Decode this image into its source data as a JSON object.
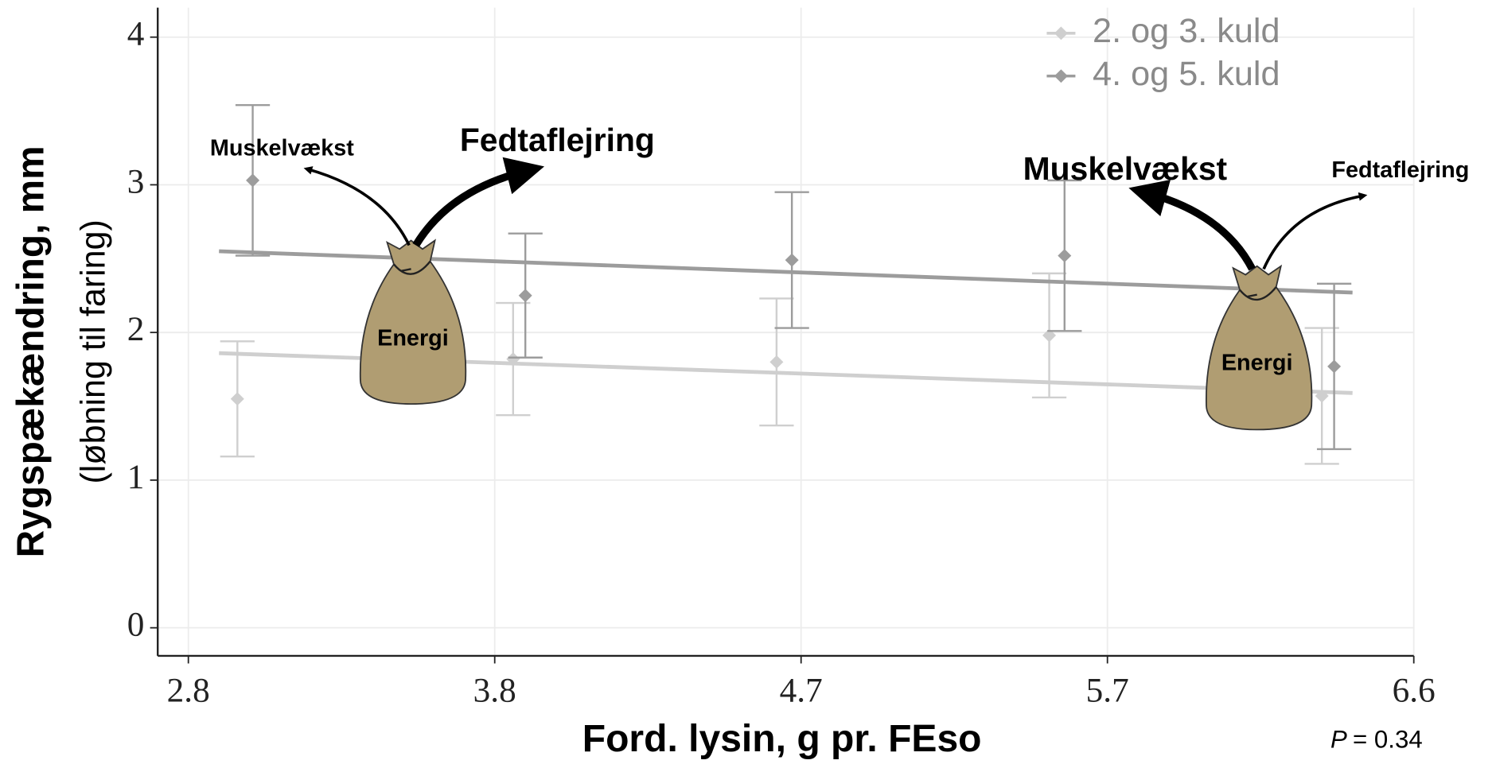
{
  "chart_data": {
    "type": "errorbar",
    "x_label": "Ford. lysin, g pr. FEso",
    "y_label": [
      "Rygspækændring, mm",
      "(løbning til faring)"
    ],
    "xlim": [
      -0.1,
      4
    ],
    "xticks": [
      {
        "value": 0,
        "label": "2.8"
      },
      {
        "value": 1,
        "label": "3.8"
      },
      {
        "value": 2,
        "label": "4.7"
      },
      {
        "value": 3,
        "label": "5.7"
      },
      {
        "value": 4,
        "label": "6.6"
      }
    ],
    "ylim": [
      -0.19,
      4.2
    ],
    "yticks": [
      0,
      1,
      2,
      3,
      4
    ],
    "grid": true,
    "legend_position": "top-right",
    "series": [
      {
        "name": "2. og 3. kuld",
        "color": "#cfcfcf",
        "x": [
          0.16,
          1.06,
          1.92,
          2.81,
          3.7
        ],
        "values": [
          1.55,
          1.82,
          1.8,
          1.98,
          1.57
        ],
        "errors": [
          0.39,
          0.38,
          0.43,
          0.42,
          0.46
        ],
        "trend": {
          "x": [
            0.1,
            3.8
          ],
          "y": [
            1.86,
            1.59
          ]
        }
      },
      {
        "name": "4. og 5. kuld",
        "color": "#9c9c9c",
        "x": [
          0.21,
          1.1,
          1.97,
          2.86,
          3.74
        ],
        "values": [
          3.03,
          2.25,
          2.49,
          2.52,
          1.77
        ],
        "errors": [
          0.51,
          0.42,
          0.46,
          0.51,
          0.56
        ],
        "trend": {
          "x": [
            0.1,
            3.8
          ],
          "y": [
            2.55,
            2.27
          ]
        }
      }
    ],
    "annotations": [
      "Muskelvækst",
      "Fedtaflejring",
      "Energi",
      "Muskelvækst",
      "Fedtaflejring",
      "Energi"
    ],
    "p_symbol": "P",
    "p_text": "= 0.34"
  }
}
